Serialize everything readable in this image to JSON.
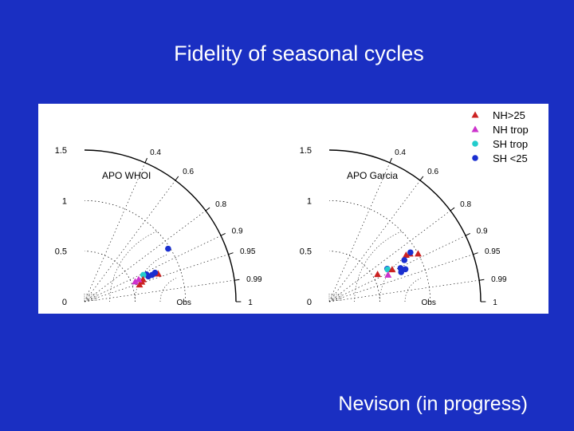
{
  "slide": {
    "title": "Fidelity of seasonal cycles",
    "footer": "Nevison (in progress)"
  },
  "colors": {
    "background": "#1a2fc2",
    "NH>25": "#cc2222",
    "NH trop": "#cc33cc",
    "SH trop": "#22cccc",
    "SH <25": "#1a2fd0"
  },
  "legend": [
    {
      "label": "NH>25",
      "marker": "triangle",
      "color": "#cc2222"
    },
    {
      "label": "NH trop",
      "marker": "triangle",
      "color": "#cc33cc"
    },
    {
      "label": "SH trop",
      "marker": "circle",
      "color": "#22cccc"
    },
    {
      "label": "SH <25",
      "marker": "circle",
      "color": "#1a2fd0"
    }
  ],
  "chart_data": [
    {
      "type": "scatter",
      "title": "APO WHOI",
      "std_ticks": [
        {
          "value": 0,
          "label": "0"
        },
        {
          "value": 0.5,
          "label": "0.5"
        },
        {
          "value": 1,
          "label": "1"
        },
        {
          "value": 1.5,
          "label": "1.5"
        }
      ],
      "corr_ticks": [
        {
          "value": 0.4,
          "label": "0.4"
        },
        {
          "value": 0.6,
          "label": "0.6"
        },
        {
          "value": 0.8,
          "label": "0.8"
        },
        {
          "value": 0.9,
          "label": "0.9"
        },
        {
          "value": 0.95,
          "label": "0.95"
        },
        {
          "value": 0.99,
          "label": "0.99"
        },
        {
          "value": 1,
          "label": "1"
        }
      ],
      "ref_label": "Obs",
      "points": [
        {
          "series": "SH <25",
          "std": 0.98,
          "corr": 0.845
        },
        {
          "series": "NH>25",
          "std": 0.78,
          "corr": 0.935
        },
        {
          "series": "SH <25",
          "std": 0.755,
          "corr": 0.925
        },
        {
          "series": "SH <25",
          "std": 0.72,
          "corr": 0.93
        },
        {
          "series": "SH <25",
          "std": 0.68,
          "corr": 0.93
        },
        {
          "series": "SH <25",
          "std": 0.67,
          "corr": 0.915
        },
        {
          "series": "SH trop",
          "std": 0.64,
          "corr": 0.91
        },
        {
          "series": "NH>25",
          "std": 0.62,
          "corr": 0.935
        },
        {
          "series": "NH>25",
          "std": 0.6,
          "corr": 0.945
        },
        {
          "series": "NH>25",
          "std": 0.57,
          "corr": 0.955
        },
        {
          "series": "NH trop",
          "std": 0.58,
          "corr": 0.925
        },
        {
          "series": "NH trop",
          "std": 0.54,
          "corr": 0.93
        }
      ]
    },
    {
      "type": "scatter",
      "title": "APO Garcia",
      "std_ticks": [
        {
          "value": 0,
          "label": "0"
        },
        {
          "value": 0.5,
          "label": "0.5"
        },
        {
          "value": 1,
          "label": "1"
        },
        {
          "value": 1.5,
          "label": "1.5"
        }
      ],
      "corr_ticks": [
        {
          "value": 0.4,
          "label": "0.4"
        },
        {
          "value": 0.6,
          "label": "0.6"
        },
        {
          "value": 0.8,
          "label": "0.8"
        },
        {
          "value": 0.9,
          "label": "0.9"
        },
        {
          "value": 0.95,
          "label": "0.95"
        },
        {
          "value": 0.99,
          "label": "0.99"
        },
        {
          "value": 1,
          "label": "1"
        }
      ],
      "ref_label": "Obs",
      "points": [
        {
          "series": "NH>25",
          "std": 1.0,
          "corr": 0.88
        },
        {
          "series": "NH>25",
          "std": 0.93,
          "corr": 0.86
        },
        {
          "series": "SH <25",
          "std": 0.94,
          "corr": 0.855
        },
        {
          "series": "NH>25",
          "std": 0.89,
          "corr": 0.855
        },
        {
          "series": "SH <25",
          "std": 0.85,
          "corr": 0.875
        },
        {
          "series": "SH <25",
          "std": 0.78,
          "corr": 0.905
        },
        {
          "series": "SH <25",
          "std": 0.66,
          "corr": 0.87
        },
        {
          "series": "SH <25",
          "std": 0.82,
          "corr": 0.92
        },
        {
          "series": "SH <25",
          "std": 0.77,
          "corr": 0.925
        },
        {
          "series": "SH trop",
          "std": 0.66,
          "corr": 0.875
        },
        {
          "series": "NH>25",
          "std": 0.7,
          "corr": 0.89
        },
        {
          "series": "NH trop",
          "std": 0.64,
          "corr": 0.91
        },
        {
          "series": "NH>25",
          "std": 0.55,
          "corr": 0.87
        }
      ]
    }
  ]
}
